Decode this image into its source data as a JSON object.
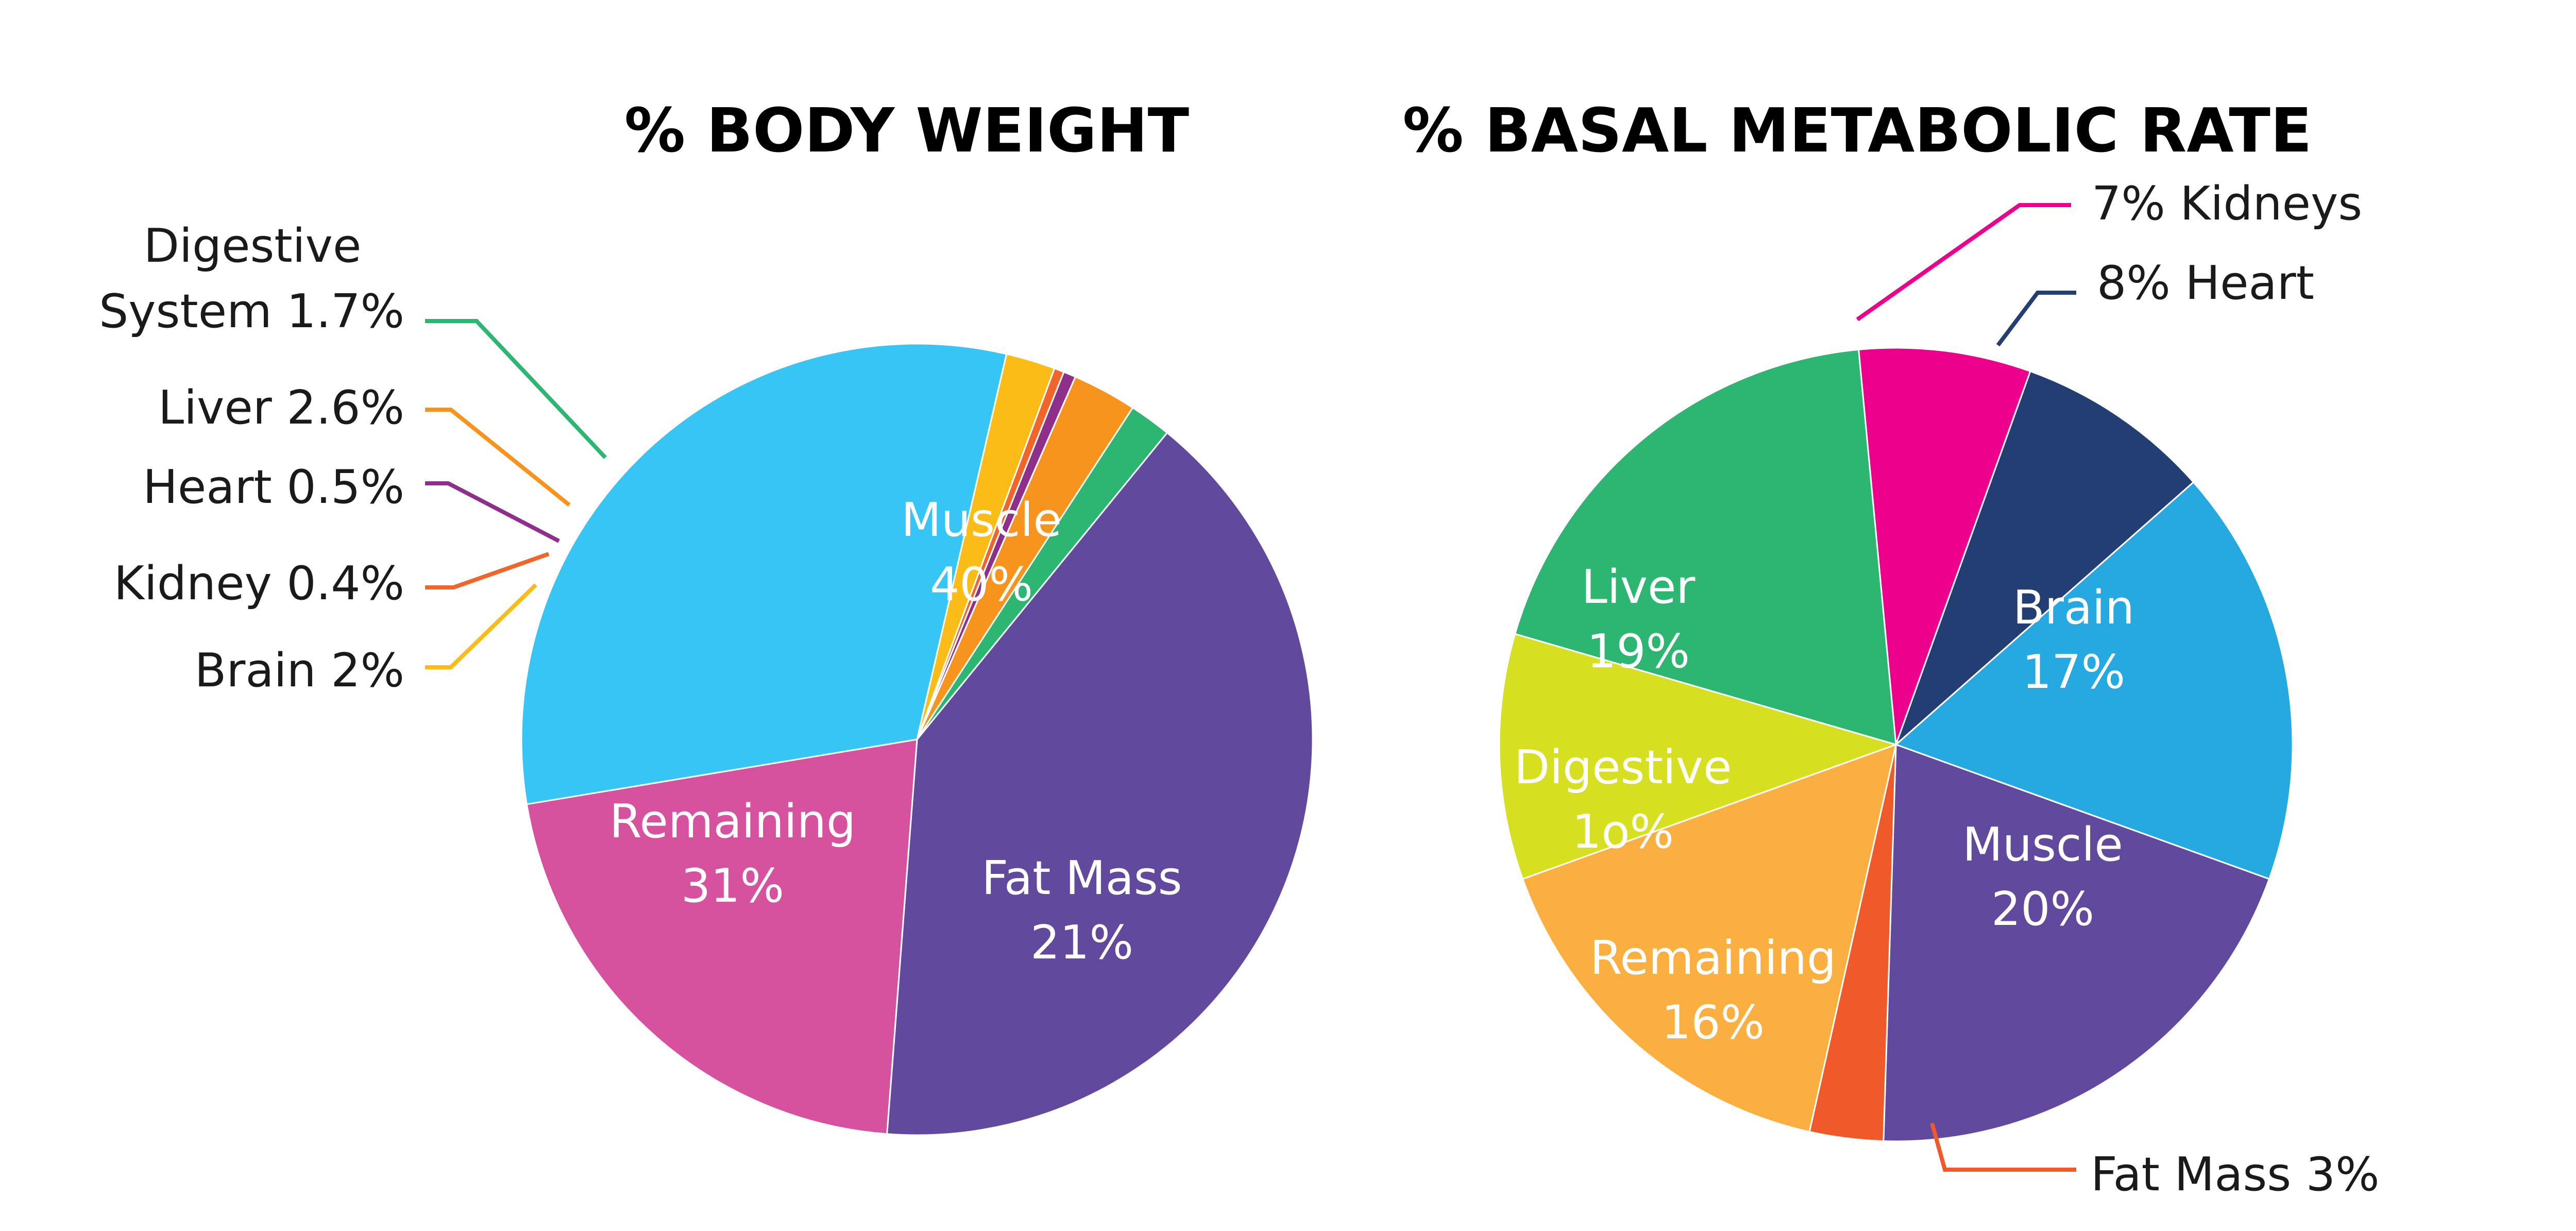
{
  "chart_data": [
    {
      "type": "pie",
      "title": "% BODY WEIGHT",
      "slices": [
        {
          "label": "Muscle",
          "value_label": "40%",
          "value": 40,
          "color": "#614A9E"
        },
        {
          "label": "Fat Mass",
          "value_label": "21%",
          "value": 21,
          "color": "#D6529E"
        },
        {
          "label": "Remaining",
          "value_label": "31%",
          "value": 31,
          "color": "#36C5F4"
        },
        {
          "label": "Brain 2%",
          "value_label": "",
          "value": 2,
          "color": "#FCBC17"
        },
        {
          "label": "Kidney 0.4%",
          "value_label": "",
          "value": 0.4,
          "color": "#F1652B"
        },
        {
          "label": "Heart 0.5%",
          "value_label": "",
          "value": 0.5,
          "color": "#8E2F8C"
        },
        {
          "label": "Liver 2.6%",
          "value_label": "",
          "value": 2.6,
          "color": "#F7941D"
        },
        {
          "label": "Digestive System 1.7%",
          "label_lines": [
            "Digestive",
            "System 1.7%"
          ],
          "value_label": "",
          "value": 1.7,
          "color": "#2DB671"
        }
      ]
    },
    {
      "type": "pie",
      "title": "% BASAL METABOLIC RATE",
      "slices": [
        {
          "label": "7% Kidneys",
          "value_label": "",
          "value": 7,
          "color": "#EC008C"
        },
        {
          "label": "8% Heart",
          "value_label": "",
          "value": 8,
          "color": "#233E73"
        },
        {
          "label": "Brain",
          "value_label": "17%",
          "value": 17,
          "color": "#25A9E0"
        },
        {
          "label": "Muscle",
          "value_label": "20%",
          "value": 20,
          "color": "#614A9E"
        },
        {
          "label": "Fat Mass 3%",
          "value_label": "",
          "value": 3,
          "color": "#F05A2A"
        },
        {
          "label": "Remaining",
          "value_label": "16%",
          "value": 16,
          "color": "#FBAF41"
        },
        {
          "label": "Digestive",
          "value_label": "1o%",
          "value": 10,
          "color": "#D7DF21"
        },
        {
          "label": "Liver",
          "value_label": "19%",
          "value": 19,
          "color": "#2DB672"
        }
      ]
    }
  ]
}
